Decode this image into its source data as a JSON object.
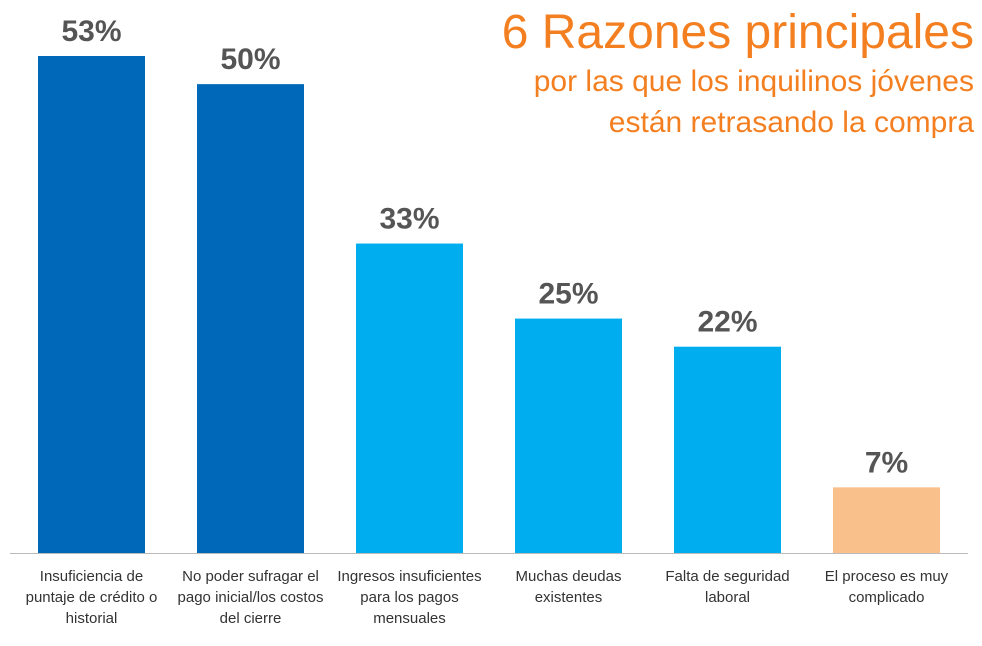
{
  "chart_data": {
    "type": "bar",
    "title": "6 Razones principales",
    "subtitle": [
      "por las que los inquilinos jóvenes",
      "están retrasando la compra"
    ],
    "categories": [
      "Insuficiencia de puntaje de crédito o historial",
      "No poder sufragar el pago inicial/los costos del cierre",
      "Ingresos insuficientes para los pagos mensuales",
      "Muchas deudas existentes",
      "Falta de seguridad laboral",
      "El proceso es muy complicado"
    ],
    "values": [
      53,
      50,
      33,
      25,
      22,
      7
    ],
    "value_labels": [
      "53%",
      "50%",
      "33%",
      "25%",
      "22%",
      "7%"
    ],
    "colors": [
      "#0068b8",
      "#0068b8",
      "#00adef",
      "#00adef",
      "#00adef",
      "#f9c08b"
    ]
  }
}
